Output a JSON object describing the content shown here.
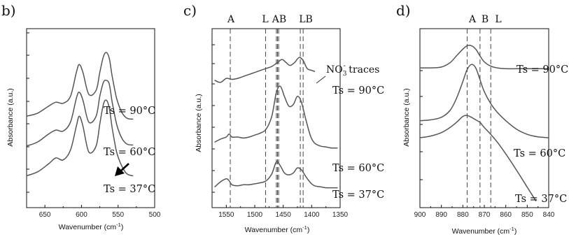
{
  "figure": {
    "panel_b": {
      "letter": "b)",
      "xlabel": "Wavenumber (cm",
      "xlabel_sup": "-1",
      "xlabel_end": ")",
      "ylabel": "Absorbance (a.u.)",
      "temp_labels": [
        "Ts = 90°C",
        "Ts = 60°C",
        "Ts = 37°C"
      ],
      "arrow_icon": "arrow-down-left-icon"
    },
    "panel_c": {
      "letter": "c)",
      "xlabel": "Wavenumber (cm",
      "xlabel_sup": "-1",
      "xlabel_end": ")",
      "ylabel": "Absorbance (a.u.)",
      "temp_labels": [
        "Ts = 90°C",
        "Ts = 60°C",
        "Ts = 37°C"
      ],
      "band_labels": [
        "A",
        "L",
        "AB",
        "LB"
      ],
      "annotation_main": "NO",
      "annotation_sub": "3",
      "annotation_sup": "-",
      "annotation_end": " traces"
    },
    "panel_d": {
      "letter": "d)",
      "xlabel": "Wavenumber (cm",
      "xlabel_sup": "-1",
      "xlabel_end": ")",
      "ylabel": "Absorbance (a.u.)",
      "temp_labels": [
        "Ts = 90°C",
        "Ts = 60°C",
        "Ts = 37°C"
      ],
      "band_labels": [
        "A",
        "B",
        "L"
      ]
    }
  },
  "chart_data": [
    {
      "type": "line",
      "panel": "b)",
      "xlabel": "Wavenumber (cm-1)",
      "ylabel": "Absorbance (a.u.)",
      "xlim": [
        675,
        500
      ],
      "x_reversed": true,
      "xticks": [
        650,
        600,
        550,
        500
      ],
      "grid": false,
      "series": [
        {
          "name": "Ts = 90°C",
          "x": [
            675,
            660,
            645,
            635,
            625,
            615,
            607,
            603,
            598,
            590,
            580,
            575,
            570,
            566,
            562,
            558,
            552,
            545,
            538,
            530
          ],
          "y": [
            1.6,
            1.75,
            2.1,
            2.3,
            2.25,
            2.6,
            3.8,
            4.2,
            3.8,
            2.7,
            2.9,
            3.8,
            4.6,
            4.8,
            4.5,
            3.6,
            2.5,
            1.8,
            1.5,
            1.45
          ]
        },
        {
          "name": "Ts = 60°C",
          "x": [
            675,
            660,
            645,
            635,
            625,
            615,
            607,
            603,
            598,
            590,
            580,
            575,
            570,
            566,
            562,
            558,
            552,
            545,
            538,
            530
          ],
          "y": [
            0.1,
            0.3,
            0.7,
            0.9,
            0.85,
            1.3,
            2.5,
            2.8,
            2.4,
            1.3,
            1.6,
            2.6,
            3.3,
            3.4,
            3.2,
            2.3,
            1.2,
            0.5,
            0.2,
            0.15
          ]
        },
        {
          "name": "Ts = 37°C",
          "x": [
            675,
            660,
            645,
            635,
            625,
            615,
            607,
            603,
            598,
            590,
            580,
            575,
            570,
            566,
            562,
            558,
            552,
            545,
            538,
            530
          ],
          "y": [
            -1.4,
            -1.2,
            -0.8,
            -0.5,
            -0.6,
            -0.1,
            1.1,
            1.6,
            1.1,
            -0.2,
            0.1,
            1.2,
            2.2,
            2.4,
            2.0,
            1.0,
            -0.2,
            -0.9,
            -1.3,
            -1.4
          ]
        }
      ]
    },
    {
      "type": "line",
      "panel": "c)",
      "xlabel": "Wavenumber (cm-1)",
      "ylabel": "Absorbance (a.u.)",
      "xlim": [
        1575,
        1350
      ],
      "x_reversed": true,
      "xticks": [
        1550,
        1500,
        1450,
        1400,
        1350
      ],
      "band_positions": [
        1543,
        1481,
        1462,
        1460,
        1458,
        1420,
        1415
      ],
      "grid": false,
      "series": [
        {
          "name": "Ts = 90°C",
          "x": [
            1570,
            1560,
            1550,
            1540,
            1530,
            1520,
            1510,
            1500,
            1490,
            1480,
            1470,
            1460,
            1452,
            1445,
            1438,
            1430,
            1422,
            1415,
            1408,
            1400,
            1395
          ],
          "y": [
            5.4,
            5.3,
            5.5,
            5.45,
            5.5,
            5.6,
            5.7,
            5.8,
            5.9,
            6.0,
            6.1,
            6.3,
            6.45,
            6.3,
            6.15,
            6.3,
            6.55,
            6.4,
            6.0,
            5.9,
            5.85
          ]
        },
        {
          "name": "Ts = 60°C",
          "x": [
            1570,
            1560,
            1550,
            1545,
            1540,
            1530,
            1520,
            1510,
            1500,
            1490,
            1480,
            1470,
            1462,
            1455,
            1448,
            1440,
            1432,
            1425,
            1418,
            1410,
            1402,
            1395,
            1385,
            1375,
            1365,
            1355
          ],
          "y": [
            2.3,
            2.45,
            2.55,
            2.7,
            2.55,
            2.55,
            2.5,
            2.55,
            2.65,
            2.75,
            2.95,
            3.6,
            4.8,
            5.1,
            4.6,
            4.1,
            4.2,
            4.6,
            4.3,
            3.4,
            2.6,
            2.25,
            2.1,
            2.05,
            2.0,
            2.0
          ]
        },
        {
          "name": "Ts = 37°C",
          "x": [
            1570,
            1560,
            1550,
            1545,
            1540,
            1530,
            1520,
            1510,
            1500,
            1490,
            1480,
            1470,
            1462,
            1455,
            1448,
            1440,
            1432,
            1425,
            1418,
            1410,
            1402,
            1395,
            1385,
            1375,
            1365,
            1355
          ],
          "y": [
            0.05,
            0.3,
            0.45,
            0.35,
            0.15,
            0.1,
            0.15,
            0.15,
            0.2,
            0.25,
            0.35,
            0.7,
            1.3,
            1.1,
            0.75,
            0.65,
            0.75,
            1.0,
            0.9,
            0.55,
            0.25,
            0.1,
            0.05,
            0.0,
            0.0,
            0.0
          ]
        }
      ]
    },
    {
      "type": "line",
      "panel": "d)",
      "xlabel": "Wavenumber (cm-1)",
      "ylabel": "Absorbance (a.u.)",
      "xlim": [
        900,
        840
      ],
      "x_reversed": true,
      "xticks": [
        900,
        890,
        880,
        870,
        860,
        850,
        840
      ],
      "band_positions": [
        878,
        872,
        867
      ],
      "grid": false,
      "series": [
        {
          "name": "Ts = 90°C",
          "x": [
            900,
            895,
            890,
            886,
            883,
            880,
            878,
            876,
            874,
            872,
            870,
            867,
            864,
            860,
            855,
            850,
            845,
            840
          ],
          "y": [
            7.2,
            7.2,
            7.25,
            7.5,
            7.9,
            8.3,
            8.5,
            8.5,
            8.3,
            7.9,
            7.55,
            7.3,
            7.2,
            7.15,
            7.15,
            7.15,
            7.15,
            7.15
          ]
        },
        {
          "name": "Ts = 60°C",
          "x": [
            900,
            895,
            890,
            886,
            883,
            880,
            878,
            876,
            874,
            872,
            870,
            867,
            864,
            860,
            855,
            850,
            845,
            840
          ],
          "y": [
            4.1,
            4.15,
            4.3,
            4.7,
            5.4,
            6.4,
            7.1,
            7.4,
            7.2,
            6.5,
            5.8,
            5.1,
            4.6,
            4.1,
            3.6,
            3.3,
            3.15,
            3.1
          ]
        },
        {
          "name": "Ts = 37°C",
          "x": [
            900,
            895,
            890,
            886,
            883,
            880,
            878,
            876,
            874,
            872,
            870,
            867,
            864,
            860,
            855,
            850,
            846
          ],
          "y": [
            3.1,
            3.2,
            3.4,
            3.7,
            4.0,
            4.35,
            4.4,
            4.3,
            4.15,
            4.0,
            3.7,
            3.3,
            2.85,
            2.15,
            1.2,
            0.2,
            -0.6
          ]
        }
      ]
    }
  ]
}
